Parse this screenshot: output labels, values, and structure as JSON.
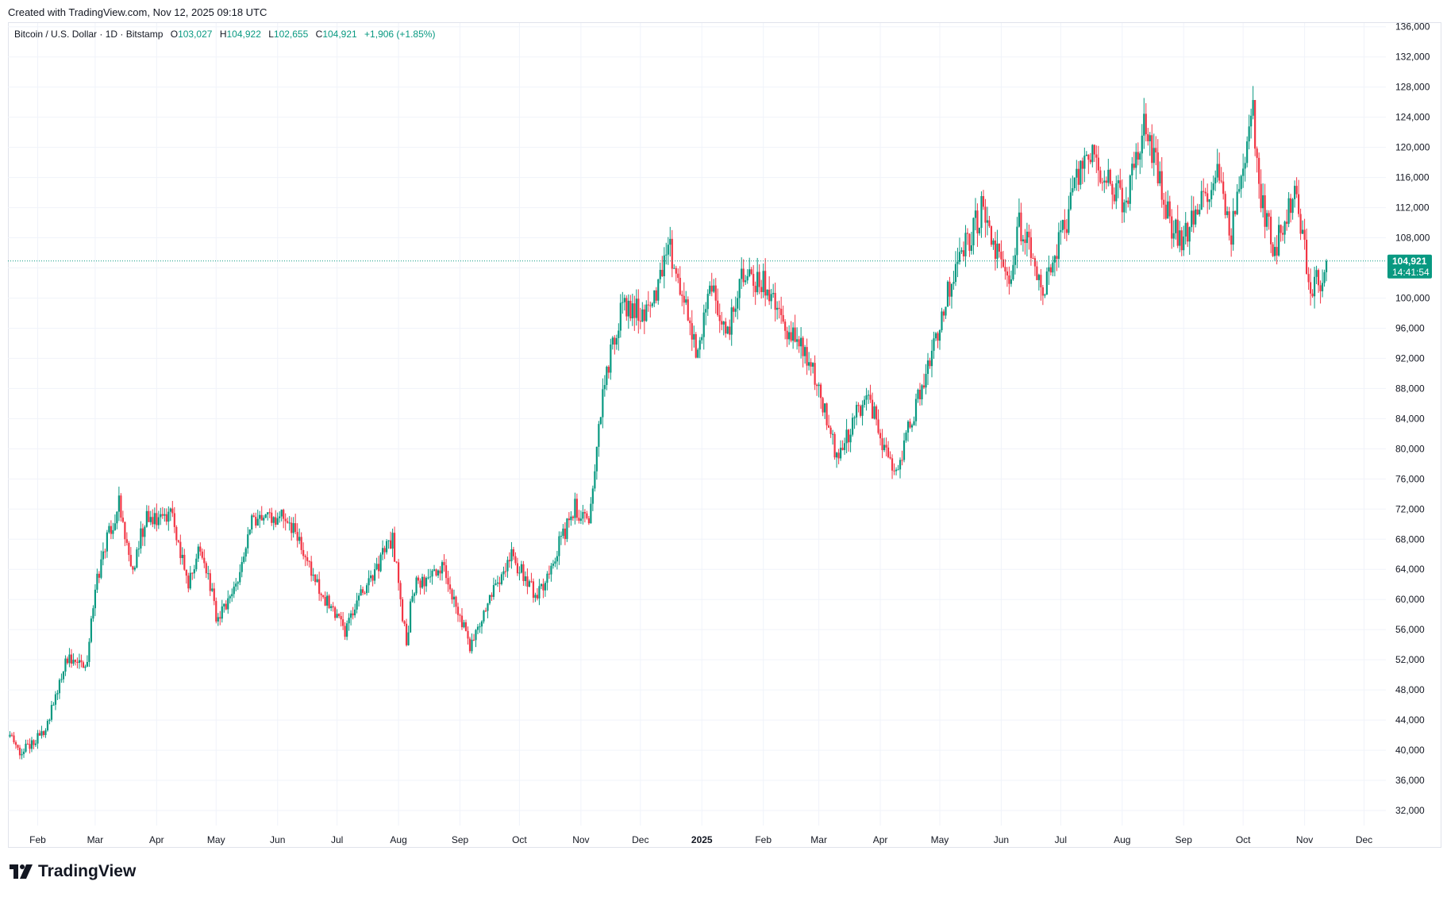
{
  "credit": "Created with TradingView.com, Nov 12, 2025 09:18 UTC",
  "legend": {
    "symbol": "Bitcoin / U.S. Dollar · 1D · Bitstamp",
    "o_label": "O",
    "o_value": "103,027",
    "h_label": "H",
    "h_value": "104,922",
    "l_label": "L",
    "l_value": "102,655",
    "c_label": "C",
    "c_value": "104,921",
    "change": "+1,906 (+1.85%)"
  },
  "price_tag": {
    "price": "104,921",
    "countdown": "14:41:54"
  },
  "brand": "TradingView",
  "colors": {
    "up": "#089981",
    "down": "#f23645",
    "grid": "#f0f3fa",
    "axis_text": "#131722",
    "tag_bg": "#089981"
  },
  "chart_data": {
    "type": "candlestick",
    "interval": "1D",
    "ylim": [
      30000,
      136500
    ],
    "y_ticks": [
      32000,
      36000,
      40000,
      44000,
      48000,
      52000,
      56000,
      60000,
      64000,
      68000,
      72000,
      76000,
      80000,
      84000,
      88000,
      92000,
      96000,
      100000,
      104000,
      108000,
      112000,
      116000,
      120000,
      124000,
      128000,
      132000,
      136000
    ],
    "x_ticks": [
      {
        "label": "Feb",
        "date": "2024-02-01",
        "bold": false
      },
      {
        "label": "Mar",
        "date": "2024-03-01",
        "bold": false
      },
      {
        "label": "Apr",
        "date": "2024-04-01",
        "bold": false
      },
      {
        "label": "May",
        "date": "2024-05-01",
        "bold": false
      },
      {
        "label": "Jun",
        "date": "2024-06-01",
        "bold": false
      },
      {
        "label": "Jul",
        "date": "2024-07-01",
        "bold": false
      },
      {
        "label": "Aug",
        "date": "2024-08-01",
        "bold": false
      },
      {
        "label": "Sep",
        "date": "2024-09-01",
        "bold": false
      },
      {
        "label": "Oct",
        "date": "2024-10-01",
        "bold": false
      },
      {
        "label": "Nov",
        "date": "2024-11-01",
        "bold": false
      },
      {
        "label": "Dec",
        "date": "2024-12-01",
        "bold": false
      },
      {
        "label": "2025",
        "date": "2025-01-01",
        "bold": true
      },
      {
        "label": "Feb",
        "date": "2025-02-01",
        "bold": false
      },
      {
        "label": "Mar",
        "date": "2025-03-01",
        "bold": false
      },
      {
        "label": "Apr",
        "date": "2025-04-01",
        "bold": false
      },
      {
        "label": "May",
        "date": "2025-05-01",
        "bold": false
      },
      {
        "label": "Jun",
        "date": "2025-06-01",
        "bold": false
      },
      {
        "label": "Jul",
        "date": "2025-07-01",
        "bold": false
      },
      {
        "label": "Aug",
        "date": "2025-08-01",
        "bold": false
      },
      {
        "label": "Sep",
        "date": "2025-09-01",
        "bold": false
      },
      {
        "label": "Oct",
        "date": "2025-10-01",
        "bold": false
      },
      {
        "label": "Nov",
        "date": "2025-11-01",
        "bold": false
      },
      {
        "label": "Dec",
        "date": "2025-12-01",
        "bold": false
      }
    ],
    "date_range": [
      "2024-01-17",
      "2025-12-12"
    ],
    "first_candle": "2024-01-18",
    "last_price": 104921,
    "close_anchors": [
      [
        "2024-01-18",
        41800
      ],
      [
        "2024-01-23",
        39500
      ],
      [
        "2024-02-05",
        42600
      ],
      [
        "2024-02-15",
        52000
      ],
      [
        "2024-02-26",
        51500
      ],
      [
        "2024-03-01",
        62000
      ],
      [
        "2024-03-05",
        66000
      ],
      [
        "2024-03-13",
        73000
      ],
      [
        "2024-03-20",
        64000
      ],
      [
        "2024-03-26",
        70500
      ],
      [
        "2024-04-08",
        71600
      ],
      [
        "2024-04-17",
        61500
      ],
      [
        "2024-04-22",
        66800
      ],
      [
        "2024-04-30",
        60600
      ],
      [
        "2024-05-01",
        57800
      ],
      [
        "2024-05-10",
        60800
      ],
      [
        "2024-05-20",
        71000
      ],
      [
        "2024-06-06",
        71000
      ],
      [
        "2024-06-24",
        60300
      ],
      [
        "2024-07-05",
        56000
      ],
      [
        "2024-07-14",
        61000
      ],
      [
        "2024-07-29",
        68200
      ],
      [
        "2024-08-05",
        54000
      ],
      [
        "2024-08-08",
        61500
      ],
      [
        "2024-08-24",
        64200
      ],
      [
        "2024-09-06",
        53800
      ],
      [
        "2024-09-18",
        61700
      ],
      [
        "2024-09-27",
        65800
      ],
      [
        "2024-10-10",
        60300
      ],
      [
        "2024-10-21",
        67400
      ],
      [
        "2024-10-29",
        72300
      ],
      [
        "2024-11-05",
        69500
      ],
      [
        "2024-11-12",
        88000
      ],
      [
        "2024-11-22",
        98900
      ],
      [
        "2024-12-05",
        98000
      ],
      [
        "2024-12-16",
        106100
      ],
      [
        "2024-12-30",
        92500
      ],
      [
        "2025-01-06",
        102200
      ],
      [
        "2025-01-13",
        94500
      ],
      [
        "2025-01-20",
        102100
      ],
      [
        "2025-01-31",
        102400
      ],
      [
        "2025-02-10",
        97400
      ],
      [
        "2025-02-24",
        91500
      ],
      [
        "2025-03-03",
        86200
      ],
      [
        "2025-03-10",
        78600
      ],
      [
        "2025-03-25",
        87500
      ],
      [
        "2025-04-08",
        76300
      ],
      [
        "2025-04-21",
        87500
      ],
      [
        "2025-05-08",
        103200
      ],
      [
        "2025-05-22",
        111700
      ],
      [
        "2025-06-05",
        101500
      ],
      [
        "2025-06-10",
        110200
      ],
      [
        "2025-06-22",
        101000
      ],
      [
        "2025-07-03",
        109600
      ],
      [
        "2025-07-14",
        119800
      ],
      [
        "2025-08-02",
        112500
      ],
      [
        "2025-08-13",
        123300
      ],
      [
        "2025-08-25",
        110100
      ],
      [
        "2025-09-01",
        107600
      ],
      [
        "2025-09-18",
        117200
      ],
      [
        "2025-09-25",
        109000
      ],
      [
        "2025-10-06",
        124700
      ],
      [
        "2025-10-10",
        113200
      ],
      [
        "2025-10-17",
        106400
      ],
      [
        "2025-10-27",
        114100
      ],
      [
        "2025-11-04",
        101500
      ],
      [
        "2025-11-11",
        103000
      ],
      [
        "2025-11-12",
        104921
      ]
    ]
  }
}
